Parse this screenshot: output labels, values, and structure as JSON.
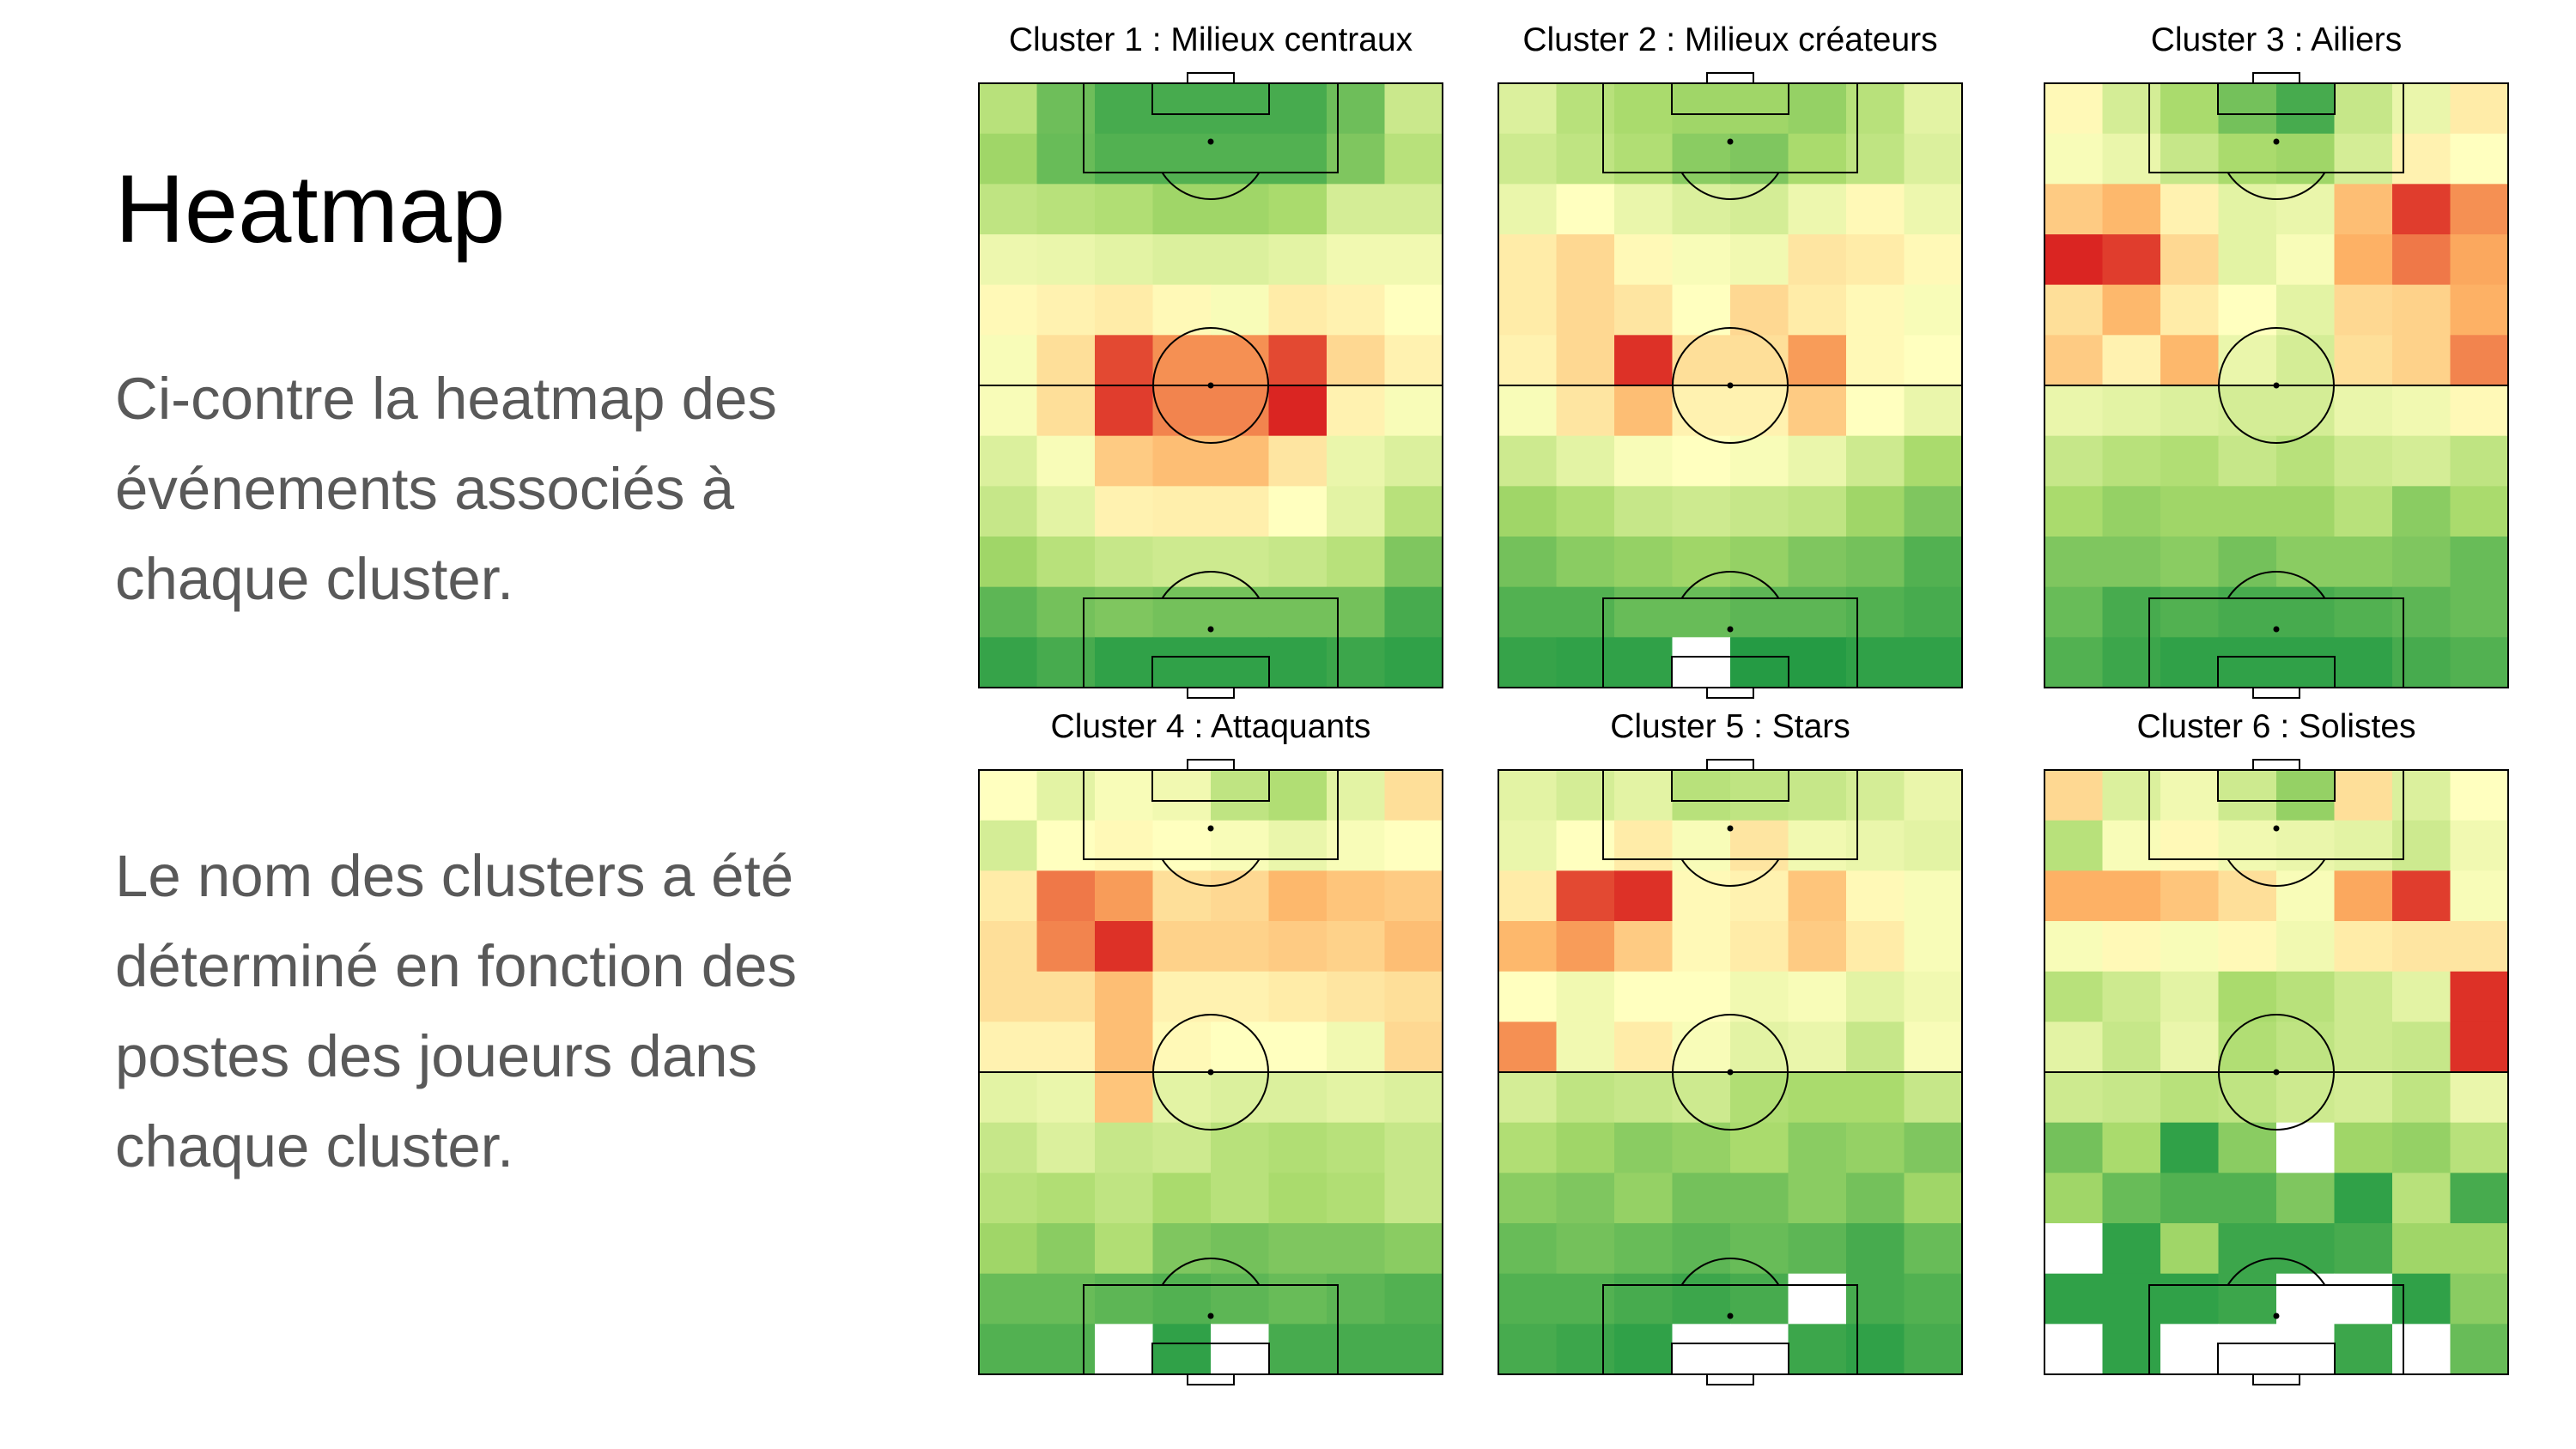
{
  "slide": {
    "title": "Heatmap",
    "paragraph1": [
      "Ci-contre la heatmap des",
      "événements associés à",
      "chaque cluster."
    ],
    "paragraph2": [
      "Le nom des clusters a été",
      "déterminé en fonction des",
      "postes des joueurs dans",
      "chaque cluster."
    ]
  },
  "colors": {
    "scale": [
      "#d7191c",
      "#fdae61",
      "#ffffbf",
      "#a6d96a",
      "#1a9641"
    ],
    "empty_cell": "#ffffff",
    "pitch_lines": "#000000"
  },
  "chart_data": [
    {
      "type": "heatmap",
      "title": "Cluster 1 : Milieux centraux",
      "grid": false,
      "rows": 12,
      "cols": 8,
      "value_range": [
        0,
        1
      ],
      "values": [
        [
          0.7,
          0.85,
          0.92,
          0.92,
          0.92,
          0.92,
          0.85,
          0.65
        ],
        [
          0.76,
          0.86,
          0.9,
          0.9,
          0.9,
          0.9,
          0.82,
          0.7
        ],
        [
          0.68,
          0.7,
          0.72,
          0.76,
          0.76,
          0.74,
          0.62,
          0.62
        ],
        [
          0.55,
          0.56,
          0.58,
          0.6,
          0.6,
          0.58,
          0.54,
          0.54
        ],
        [
          0.48,
          0.46,
          0.44,
          0.48,
          0.52,
          0.44,
          0.46,
          0.5
        ],
        [
          0.52,
          0.4,
          0.08,
          0.2,
          0.2,
          0.08,
          0.38,
          0.46
        ],
        [
          0.52,
          0.4,
          0.06,
          0.18,
          0.18,
          0.02,
          0.46,
          0.52
        ],
        [
          0.6,
          0.52,
          0.34,
          0.3,
          0.3,
          0.42,
          0.56,
          0.6
        ],
        [
          0.66,
          0.58,
          0.46,
          0.45,
          0.45,
          0.5,
          0.58,
          0.7
        ],
        [
          0.76,
          0.7,
          0.66,
          0.64,
          0.64,
          0.66,
          0.7,
          0.82
        ],
        [
          0.88,
          0.84,
          0.82,
          0.84,
          0.84,
          0.84,
          0.84,
          0.92
        ],
        [
          0.95,
          0.92,
          0.96,
          0.96,
          0.96,
          0.96,
          0.94,
          0.96
        ]
      ]
    },
    {
      "type": "heatmap",
      "title": "Cluster  2 : Milieux créateurs",
      "grid": false,
      "rows": 12,
      "cols": 8,
      "value_range": [
        0,
        1
      ],
      "values": [
        [
          0.6,
          0.7,
          0.74,
          0.76,
          0.76,
          0.78,
          0.7,
          0.58
        ],
        [
          0.64,
          0.68,
          0.72,
          0.8,
          0.82,
          0.74,
          0.68,
          0.6
        ],
        [
          0.56,
          0.5,
          0.56,
          0.6,
          0.62,
          0.55,
          0.48,
          0.55
        ],
        [
          0.44,
          0.38,
          0.48,
          0.52,
          0.54,
          0.42,
          0.44,
          0.48
        ],
        [
          0.44,
          0.38,
          0.42,
          0.5,
          0.38,
          0.44,
          0.48,
          0.52
        ],
        [
          0.46,
          0.38,
          0.04,
          0.4,
          0.4,
          0.22,
          0.48,
          0.5
        ],
        [
          0.52,
          0.42,
          0.3,
          0.46,
          0.46,
          0.34,
          0.5,
          0.56
        ],
        [
          0.64,
          0.58,
          0.52,
          0.5,
          0.52,
          0.56,
          0.64,
          0.74
        ],
        [
          0.76,
          0.72,
          0.66,
          0.64,
          0.66,
          0.68,
          0.76,
          0.82
        ],
        [
          0.84,
          0.8,
          0.78,
          0.76,
          0.78,
          0.82,
          0.84,
          0.9
        ],
        [
          0.9,
          0.9,
          0.86,
          0.86,
          0.88,
          0.88,
          0.9,
          0.92
        ],
        [
          0.95,
          0.96,
          0.96,
          -1,
          0.98,
          0.98,
          0.96,
          0.96
        ]
      ]
    },
    {
      "type": "heatmap",
      "title": "Cluster  3 : Ailiers",
      "grid": false,
      "rows": 12,
      "cols": 8,
      "value_range": [
        0,
        1
      ],
      "values": [
        [
          0.48,
          0.62,
          0.74,
          0.84,
          0.92,
          0.66,
          0.56,
          0.44
        ],
        [
          0.52,
          0.56,
          0.66,
          0.74,
          0.76,
          0.62,
          0.46,
          0.5
        ],
        [
          0.34,
          0.28,
          0.46,
          0.58,
          0.56,
          0.3,
          0.06,
          0.2
        ],
        [
          0.02,
          0.06,
          0.38,
          0.58,
          0.52,
          0.26,
          0.16,
          0.24
        ],
        [
          0.4,
          0.28,
          0.44,
          0.5,
          0.58,
          0.38,
          0.36,
          0.26
        ],
        [
          0.34,
          0.46,
          0.28,
          0.56,
          0.62,
          0.4,
          0.36,
          0.18
        ],
        [
          0.56,
          0.58,
          0.6,
          0.62,
          0.62,
          0.56,
          0.54,
          0.48
        ],
        [
          0.66,
          0.7,
          0.72,
          0.66,
          0.7,
          0.64,
          0.62,
          0.68
        ],
        [
          0.74,
          0.78,
          0.76,
          0.76,
          0.76,
          0.7,
          0.8,
          0.74
        ],
        [
          0.82,
          0.82,
          0.8,
          0.84,
          0.8,
          0.8,
          0.82,
          0.86
        ],
        [
          0.86,
          0.92,
          0.9,
          0.92,
          0.92,
          0.9,
          0.88,
          0.86
        ],
        [
          0.9,
          0.94,
          0.96,
          0.96,
          0.96,
          0.96,
          0.92,
          0.9
        ]
      ]
    },
    {
      "type": "heatmap",
      "title": "Cluster 4 : Attaquants",
      "grid": false,
      "rows": 12,
      "cols": 8,
      "value_range": [
        0,
        1
      ],
      "values": [
        [
          0.5,
          0.58,
          0.52,
          0.54,
          0.68,
          0.72,
          0.58,
          0.4
        ],
        [
          0.62,
          0.5,
          0.48,
          0.5,
          0.52,
          0.56,
          0.52,
          0.5
        ],
        [
          0.44,
          0.16,
          0.22,
          0.4,
          0.38,
          0.28,
          0.32,
          0.34
        ],
        [
          0.4,
          0.18,
          0.04,
          0.36,
          0.36,
          0.34,
          0.36,
          0.3
        ],
        [
          0.4,
          0.4,
          0.3,
          0.46,
          0.46,
          0.44,
          0.42,
          0.4
        ],
        [
          0.46,
          0.46,
          0.3,
          0.48,
          0.5,
          0.5,
          0.54,
          0.38
        ],
        [
          0.58,
          0.56,
          0.32,
          0.58,
          0.6,
          0.6,
          0.58,
          0.6
        ],
        [
          0.66,
          0.6,
          0.66,
          0.64,
          0.7,
          0.72,
          0.7,
          0.66
        ],
        [
          0.7,
          0.72,
          0.68,
          0.74,
          0.7,
          0.74,
          0.72,
          0.66
        ],
        [
          0.76,
          0.8,
          0.72,
          0.82,
          0.84,
          0.82,
          0.82,
          0.8
        ],
        [
          0.86,
          0.86,
          0.88,
          0.9,
          0.88,
          0.86,
          0.88,
          0.9
        ],
        [
          0.9,
          0.9,
          -1,
          0.96,
          -1,
          0.92,
          0.92,
          0.92
        ]
      ]
    },
    {
      "type": "heatmap",
      "title": "Cluster 5 : Stars",
      "grid": false,
      "rows": 12,
      "cols": 8,
      "value_range": [
        0,
        1
      ],
      "values": [
        [
          0.58,
          0.62,
          0.58,
          0.7,
          0.68,
          0.66,
          0.62,
          0.56
        ],
        [
          0.56,
          0.5,
          0.44,
          0.52,
          0.42,
          0.54,
          0.56,
          0.58
        ],
        [
          0.44,
          0.08,
          0.04,
          0.48,
          0.46,
          0.32,
          0.48,
          0.52
        ],
        [
          0.28,
          0.22,
          0.34,
          0.48,
          0.44,
          0.34,
          0.44,
          0.52
        ],
        [
          0.5,
          0.54,
          0.5,
          0.5,
          0.54,
          0.52,
          0.58,
          0.54
        ],
        [
          0.2,
          0.54,
          0.44,
          0.52,
          0.58,
          0.56,
          0.66,
          0.52
        ],
        [
          0.62,
          0.68,
          0.66,
          0.64,
          0.72,
          0.74,
          0.74,
          0.66
        ],
        [
          0.72,
          0.76,
          0.8,
          0.78,
          0.74,
          0.8,
          0.78,
          0.82
        ],
        [
          0.8,
          0.82,
          0.78,
          0.84,
          0.84,
          0.8,
          0.84,
          0.76
        ],
        [
          0.86,
          0.84,
          0.86,
          0.88,
          0.86,
          0.88,
          0.92,
          0.86
        ],
        [
          0.9,
          0.9,
          0.92,
          0.94,
          0.92,
          -1,
          0.92,
          0.9
        ],
        [
          0.92,
          0.94,
          0.96,
          -1,
          -1,
          0.94,
          0.96,
          0.92
        ]
      ]
    },
    {
      "type": "heatmap",
      "title": "Cluster 6 : Solistes",
      "grid": false,
      "rows": 12,
      "cols": 8,
      "value_range": [
        0,
        1
      ],
      "values": [
        [
          0.38,
          0.6,
          0.54,
          0.64,
          0.78,
          0.4,
          0.6,
          0.5
        ],
        [
          0.7,
          0.52,
          0.48,
          0.54,
          0.56,
          0.58,
          0.64,
          0.54
        ],
        [
          0.26,
          0.26,
          0.32,
          0.4,
          0.52,
          0.24,
          0.06,
          0.52
        ],
        [
          0.52,
          0.48,
          0.52,
          0.48,
          0.54,
          0.44,
          0.42,
          0.42
        ],
        [
          0.7,
          0.64,
          0.58,
          0.74,
          0.7,
          0.64,
          0.58,
          0.04
        ],
        [
          0.58,
          0.66,
          0.56,
          0.72,
          0.68,
          0.64,
          0.66,
          0.04
        ],
        [
          0.64,
          0.66,
          0.7,
          0.68,
          0.64,
          0.62,
          0.68,
          0.56
        ],
        [
          0.84,
          0.74,
          0.96,
          0.8,
          -1,
          0.76,
          0.78,
          0.7
        ],
        [
          0.76,
          0.86,
          0.9,
          0.9,
          0.82,
          0.96,
          0.7,
          0.92
        ],
        [
          -1,
          0.96,
          0.76,
          0.94,
          0.94,
          0.92,
          0.76,
          0.76
        ],
        [
          0.96,
          0.96,
          0.96,
          0.94,
          -1,
          -1,
          0.96,
          0.8
        ],
        [
          -1,
          0.96,
          -1,
          -1,
          -1,
          0.94,
          -1,
          0.86
        ]
      ]
    }
  ]
}
